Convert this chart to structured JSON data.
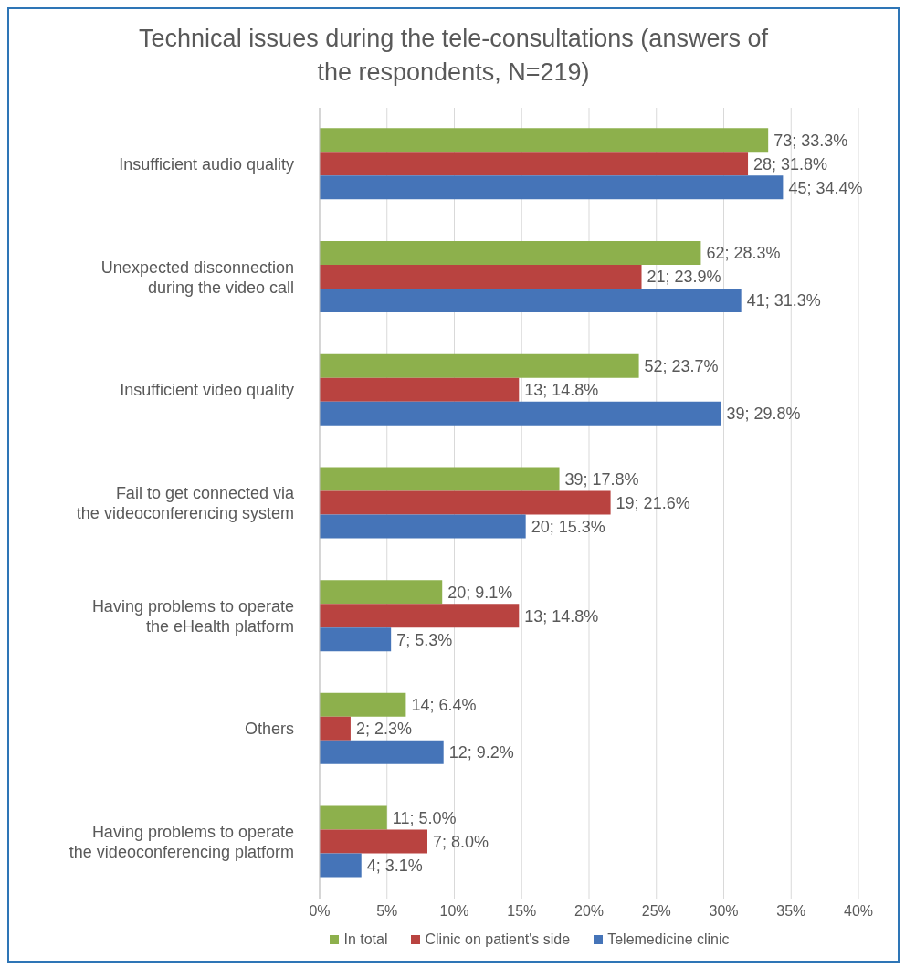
{
  "chart_data": {
    "type": "bar",
    "orientation": "horizontal",
    "title": "Technical issues during the tele-consultations (answers of the respondents, N=219)",
    "categories": [
      "Insufficient audio quality",
      "Unexpected disconnection during the video call",
      "Insufficient video quality",
      "Fail to get connected via the videoconferencing system",
      "Having problems to operate the eHealth platform",
      "Others",
      "Having problems to operate the videoconferencing platform"
    ],
    "series": [
      {
        "name": "In total",
        "color": "#8db04c",
        "values": [
          33.3,
          28.3,
          23.7,
          17.8,
          9.1,
          6.4,
          5.0
        ],
        "value_labels": [
          "73; 33.3%",
          "62; 28.3%",
          "52; 23.7%",
          "39; 17.8%",
          "20; 9.1%",
          "14; 6.4%",
          "11; 5.0%"
        ]
      },
      {
        "name": "Clinic on patient's side",
        "color": "#b94340",
        "values": [
          31.8,
          23.9,
          14.8,
          21.6,
          14.8,
          2.3,
          8.0
        ],
        "value_labels": [
          "28; 31.8%",
          "21; 23.9%",
          "13; 14.8%",
          "19; 21.6%",
          "13; 14.8%",
          "2; 2.3%",
          "7; 8.0%"
        ]
      },
      {
        "name": "Telemedicine clinic",
        "color": "#4574b8",
        "values": [
          34.4,
          31.3,
          29.8,
          15.3,
          5.3,
          9.2,
          3.1
        ],
        "value_labels": [
          "45; 34.4%",
          "41; 31.3%",
          "39; 29.8%",
          "20; 15.3%",
          "7; 5.3%",
          "12; 9.2%",
          "4; 3.1%"
        ]
      }
    ],
    "xlim": [
      0,
      40
    ],
    "xticks": [
      {
        "value": 0,
        "label": "0%"
      },
      {
        "value": 5,
        "label": "5%"
      },
      {
        "value": 10,
        "label": "10%"
      },
      {
        "value": 15,
        "label": "15%"
      },
      {
        "value": 20,
        "label": "20%"
      },
      {
        "value": 25,
        "label": "25%"
      },
      {
        "value": 30,
        "label": "30%"
      },
      {
        "value": 35,
        "label": "35%"
      },
      {
        "value": 40,
        "label": "40%"
      }
    ],
    "grid": "x",
    "legend": "bottom"
  }
}
